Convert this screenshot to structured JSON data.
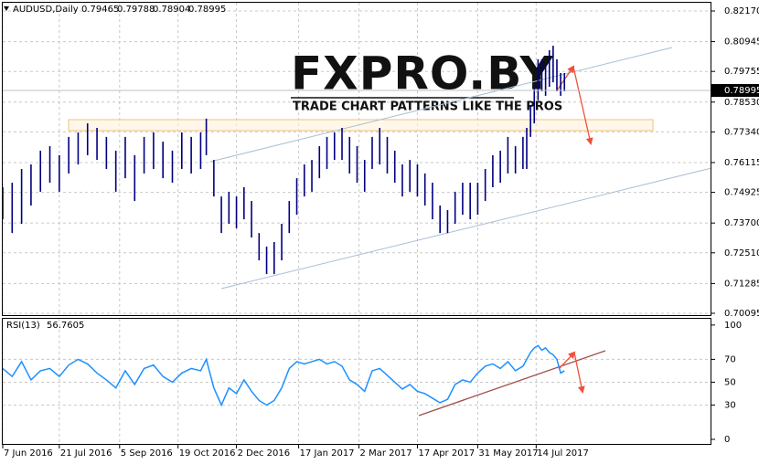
{
  "chart_data": {
    "type": "ohlc",
    "title": "AUDUSD,Daily",
    "header_values": [
      0.79465,
      0.79788,
      0.78904,
      0.78995
    ],
    "last_price": 0.78995,
    "color": "#000080",
    "grid": true,
    "watermark": {
      "title": "FXPRO.BY",
      "subtitle": "TRADE CHART PATTERNS LIKE THE PROS"
    },
    "x": [
      0,
      5,
      10,
      15,
      20,
      25,
      30,
      35,
      40,
      45,
      50,
      55,
      60,
      65,
      70,
      75,
      80,
      85,
      90,
      95,
      100,
      105,
      108,
      112,
      116,
      120,
      124,
      128,
      132,
      136,
      140,
      144,
      148,
      152,
      156,
      160,
      164,
      168,
      172,
      176,
      180,
      184,
      188,
      192,
      196,
      200,
      204,
      208,
      212,
      216,
      220,
      224,
      228,
      232,
      236,
      240,
      244,
      248,
      252,
      256,
      260,
      264,
      268,
      272,
      276,
      278,
      280,
      282,
      284,
      286,
      288,
      290,
      292,
      294,
      296,
      298
    ],
    "high": [
      0.7513,
      0.7531,
      0.7586,
      0.7604,
      0.7659,
      0.7677,
      0.7641,
      0.7714,
      0.7732,
      0.7768,
      0.775,
      0.7714,
      0.7659,
      0.7714,
      0.7641,
      0.7714,
      0.7732,
      0.7695,
      0.7659,
      0.7732,
      0.7714,
      0.7732,
      0.7787,
      0.7622,
      0.7476,
      0.7495,
      0.7476,
      0.7513,
      0.7458,
      0.733,
      0.7276,
      0.7294,
      0.7367,
      0.7458,
      0.7549,
      0.7604,
      0.7622,
      0.7677,
      0.7714,
      0.7732,
      0.775,
      0.7714,
      0.7677,
      0.7622,
      0.7714,
      0.775,
      0.7714,
      0.7659,
      0.7604,
      0.7622,
      0.7604,
      0.7568,
      0.7531,
      0.744,
      0.7422,
      0.7495,
      0.7531,
      0.7531,
      0.7531,
      0.7586,
      0.7641,
      0.7659,
      0.7714,
      0.7677,
      0.7714,
      0.775,
      0.7841,
      0.7914,
      0.8024,
      0.8024,
      0.8005,
      0.806,
      0.8078,
      0.8024,
      0.7969,
      0.7969
    ],
    "low": [
      0.7385,
      0.733,
      0.7367,
      0.744,
      0.7495,
      0.7531,
      0.7495,
      0.7568,
      0.7604,
      0.7641,
      0.7622,
      0.7586,
      0.7495,
      0.7549,
      0.7458,
      0.7568,
      0.7586,
      0.7549,
      0.7531,
      0.7586,
      0.7568,
      0.7586,
      0.7641,
      0.7476,
      0.733,
      0.7367,
      0.7349,
      0.7385,
      0.7312,
      0.7221,
      0.7166,
      0.7166,
      0.7221,
      0.733,
      0.7403,
      0.7476,
      0.7495,
      0.7549,
      0.7586,
      0.7622,
      0.7622,
      0.7568,
      0.7531,
      0.7495,
      0.7586,
      0.7604,
      0.7568,
      0.7531,
      0.7476,
      0.7495,
      0.7476,
      0.744,
      0.7385,
      0.733,
      0.733,
      0.7367,
      0.7403,
      0.7385,
      0.7403,
      0.7458,
      0.7513,
      0.7531,
      0.7568,
      0.7568,
      0.7586,
      0.7586,
      0.7714,
      0.7768,
      0.786,
      0.7896,
      0.7878,
      0.7914,
      0.7932,
      0.7896,
      0.7878,
      0.7896
    ],
    "xlim": [
      0,
      376
    ],
    "ylim": [
      0.69986,
      0.82498
    ],
    "yticks": [
      {
        "value": 0.8217,
        "label": "0.82170"
      },
      0.80945,
      0.79755,
      {
        "value": 0.7853,
        "label": "0.78530"
      },
      {
        "value": 0.7734,
        "label": "0.77340"
      },
      0.76115,
      0.74925,
      {
        "value": 0.737,
        "label": "0.73700"
      },
      {
        "value": 0.7251,
        "label": "0.72510"
      },
      0.71285,
      0.70095
    ],
    "xticks": [
      {
        "value": 0,
        "label": "7 Jun 2016"
      },
      {
        "value": 30,
        "label": "21 Jul 2016"
      },
      {
        "value": 62,
        "label": "5 Sep 2016"
      },
      {
        "value": 93,
        "label": "19 Oct 2016"
      },
      {
        "value": 124,
        "label": "2 Dec 2016"
      },
      {
        "value": 157,
        "label": "17 Jan 2017"
      },
      {
        "value": 189,
        "label": "2 Mar 2017"
      },
      {
        "value": 220,
        "label": "17 Apr 2017"
      },
      {
        "value": 252,
        "label": "31 May 2017"
      },
      {
        "value": 283,
        "label": "14 Jul 2017"
      }
    ],
    "indicator": {
      "type": "line",
      "title": "RSI(13)",
      "value": 56.7605,
      "color": "#1e90ff",
      "values": [
        62,
        55,
        68,
        52,
        60,
        62,
        55,
        65,
        70,
        66,
        58,
        52,
        45,
        60,
        48,
        62,
        65,
        55,
        50,
        58,
        62,
        60,
        70,
        45,
        30,
        45,
        40,
        52,
        42,
        34,
        30,
        34,
        45,
        62,
        68,
        66,
        68,
        70,
        66,
        68,
        64,
        52,
        48,
        42,
        60,
        62,
        56,
        50,
        44,
        48,
        42,
        40,
        36,
        32,
        35,
        48,
        52,
        50,
        58,
        64,
        66,
        62,
        68,
        60,
        64,
        70,
        76,
        80,
        82,
        78,
        80,
        76,
        74,
        70,
        58,
        60
      ],
      "ylim": [
        -4.8,
        105.5
      ],
      "yticks": [
        100,
        70,
        50,
        30,
        0
      ]
    }
  }
}
